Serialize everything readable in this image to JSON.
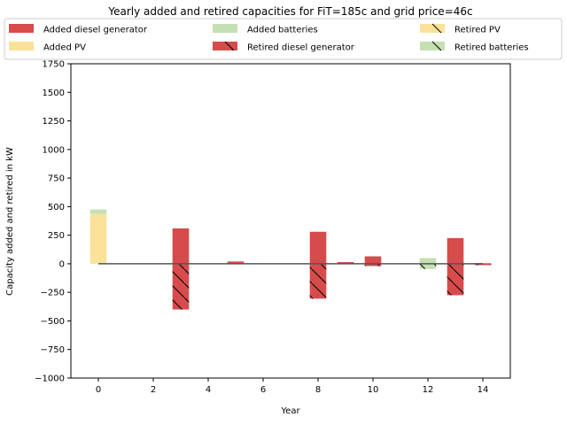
{
  "chart_data": {
    "type": "bar",
    "title": "Yearly added and retired capacities for FiT=185c and grid price=46c",
    "xlabel": "Year",
    "ylabel": "Capacity added and retired in kW",
    "xlim": [
      -1,
      15
    ],
    "ylim": [
      -1000,
      1750
    ],
    "xticks": [
      0,
      2,
      4,
      6,
      8,
      10,
      12,
      14
    ],
    "xtick_labels": [
      "0",
      "2",
      "4",
      "6",
      "8",
      "10",
      "12",
      "14"
    ],
    "yticks": [
      -1000,
      -750,
      -500,
      -250,
      0,
      250,
      500,
      750,
      1000,
      1250,
      1500,
      1750
    ],
    "ytick_labels": [
      "−1000",
      "−750",
      "−500",
      "−250",
      "0",
      "250",
      "500",
      "750",
      "1000",
      "1250",
      "1500",
      "1750"
    ],
    "legend_position": "top",
    "legend_columns": 3,
    "series": [
      {
        "name": "Added diesel generator",
        "kind": "added",
        "stack": "added",
        "color": "#d64c4c",
        "hatch": false,
        "points": [
          {
            "x": 3,
            "y": 310
          },
          {
            "x": 5,
            "y": 20
          },
          {
            "x": 8,
            "y": 280
          },
          {
            "x": 9,
            "y": 15
          },
          {
            "x": 10,
            "y": 65
          },
          {
            "x": 13,
            "y": 225
          },
          {
            "x": 14,
            "y": 5
          }
        ]
      },
      {
        "name": "Added PV",
        "kind": "added",
        "stack": "added",
        "color": "#fae29a",
        "hatch": false,
        "points": [
          {
            "x": 0,
            "y": 435
          }
        ]
      },
      {
        "name": "Added batteries",
        "kind": "added",
        "stack": "added",
        "color": "#c5e0b3",
        "hatch": false,
        "points": [
          {
            "x": 0,
            "y": 40
          },
          {
            "x": 12,
            "y": 50
          }
        ]
      },
      {
        "name": "Retired PV",
        "kind": "retired",
        "stack": "retired",
        "color": "#fae29a",
        "hatch": true,
        "points": []
      },
      {
        "name": "Retired diesel generator",
        "kind": "retired",
        "stack": "retired",
        "color": "#d64c4c",
        "hatch": true,
        "points": [
          {
            "x": 3,
            "y": -400
          },
          {
            "x": 8,
            "y": -305
          },
          {
            "x": 10,
            "y": -20
          },
          {
            "x": 13,
            "y": -275
          },
          {
            "x": 14,
            "y": -12
          }
        ]
      },
      {
        "name": "Retired batteries",
        "kind": "retired",
        "stack": "retired",
        "color": "#c5e0b3",
        "hatch": true,
        "points": [
          {
            "x": 12,
            "y": -45
          }
        ]
      }
    ],
    "legend_order": [
      "Added diesel generator",
      "Added batteries",
      "Retired PV",
      "Added PV",
      "Retired diesel generator",
      "Retired batteries"
    ],
    "net_line": {
      "color": "#555555",
      "points": [
        {
          "x": 0,
          "y": 0
        },
        {
          "x": 14,
          "y": 0
        }
      ]
    }
  }
}
